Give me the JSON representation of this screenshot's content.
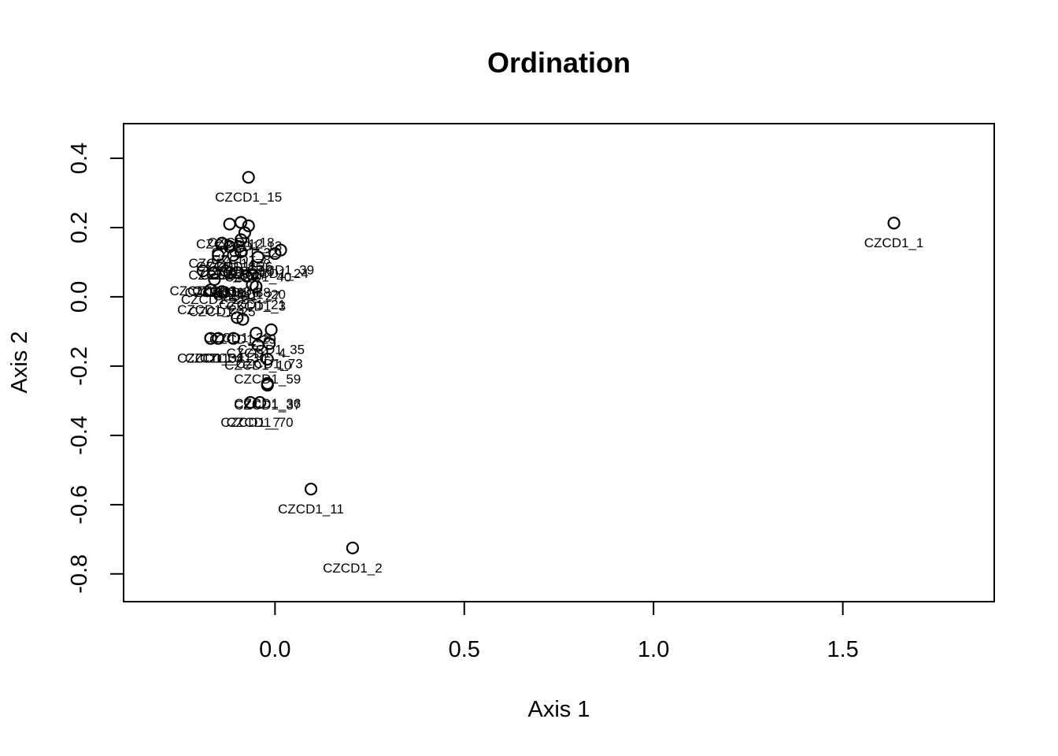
{
  "chart_data": {
    "type": "scatter",
    "title": "Ordination",
    "xlabel": "Axis 1",
    "ylabel": "Axis 2",
    "xlim": [
      -0.4,
      1.9
    ],
    "ylim": [
      -0.88,
      0.5
    ],
    "x_ticks": [
      0.0,
      0.5,
      1.0,
      1.5
    ],
    "y_ticks": [
      -0.8,
      -0.6,
      -0.4,
      -0.2,
      0.0,
      0.2,
      0.4
    ],
    "grid": false,
    "legend": "none",
    "points": [
      {
        "label": "CZCD1_15",
        "x": -0.07,
        "y": 0.345
      },
      {
        "label": "CZCD1_1",
        "x": 1.635,
        "y": 0.213
      },
      {
        "label": "CZCD1_12",
        "x": -0.12,
        "y": 0.21
      },
      {
        "label": "CZCD1_18",
        "x": -0.09,
        "y": 0.215
      },
      {
        "label": "CZCD1_13",
        "x": -0.07,
        "y": 0.205
      },
      {
        "label": "CZCD1_32",
        "x": -0.08,
        "y": 0.185
      },
      {
        "label": "CZCD1_8",
        "x": -0.09,
        "y": 0.165
      },
      {
        "label": "CZCD1_14",
        "x": -0.14,
        "y": 0.155
      },
      {
        "label": "CZCD1_16",
        "x": -0.12,
        "y": 0.145
      },
      {
        "label": "CZCD1_26",
        "x": -0.095,
        "y": 0.145
      },
      {
        "label": "CZCD1_39",
        "x": 0.015,
        "y": 0.135
      },
      {
        "label": "CZCD1_5",
        "x": -0.15,
        "y": 0.12
      },
      {
        "label": "CZCD1_17",
        "x": -0.11,
        "y": 0.12
      },
      {
        "label": "CZCD1_19",
        "x": -0.09,
        "y": 0.13
      },
      {
        "label": "CZCD1_40",
        "x": -0.045,
        "y": 0.115
      },
      {
        "label": "CZCD1_24",
        "x": 0.0,
        "y": 0.125
      },
      {
        "label": "CZCD1_33",
        "x": -0.19,
        "y": 0.075
      },
      {
        "label": "CZCD1_9",
        "x": -0.16,
        "y": 0.07
      },
      {
        "label": "CZCD1_34",
        "x": -0.13,
        "y": 0.075
      },
      {
        "label": "CZCD1_6",
        "x": -0.12,
        "y": 0.07
      },
      {
        "label": "CZCD1_38",
        "x": -0.1,
        "y": 0.07
      },
      {
        "label": "CZCD1_20",
        "x": -0.06,
        "y": 0.065
      },
      {
        "label": "CZCD1_27",
        "x": -0.075,
        "y": 0.06
      },
      {
        "label": "CZCD1_22",
        "x": -0.16,
        "y": 0.05
      },
      {
        "label": "CZCD1_3",
        "x": -0.05,
        "y": 0.03
      },
      {
        "label": "CZCD1_23",
        "x": -0.17,
        "y": 0.02
      },
      {
        "label": "CZCD1_25",
        "x": -0.14,
        "y": 0.015
      },
      {
        "label": "CZCD1_21",
        "x": -0.06,
        "y": 0.035
      },
      {
        "label": "CZCD1_28",
        "x": -0.1,
        "y": -0.06
      },
      {
        "label": "CZCD1_29",
        "x": -0.085,
        "y": -0.065
      },
      {
        "label": "CZCD1_35",
        "x": -0.01,
        "y": -0.095
      },
      {
        "label": "CZCD1_4",
        "x": -0.05,
        "y": -0.105
      },
      {
        "label": "CZCD1_31",
        "x": -0.17,
        "y": -0.12
      },
      {
        "label": "CZCD1_41",
        "x": -0.15,
        "y": -0.12
      },
      {
        "label": "CZCD1_30",
        "x": -0.11,
        "y": -0.12
      },
      {
        "label": "CZCD1_10",
        "x": -0.045,
        "y": -0.14
      },
      {
        "label": "CZCD1_73",
        "x": -0.015,
        "y": -0.135
      },
      {
        "label": "CZCD1_59",
        "x": -0.02,
        "y": -0.18
      },
      {
        "label": "CZCD1_36",
        "x": -0.02,
        "y": -0.25
      },
      {
        "label": "CZCD1_37",
        "x": -0.02,
        "y": -0.255
      },
      {
        "label": "CZCD1_7",
        "x": -0.065,
        "y": -0.305
      },
      {
        "label": "CZCD1_70",
        "x": -0.04,
        "y": -0.305
      },
      {
        "label": "CZCD1_11",
        "x": 0.095,
        "y": -0.555
      },
      {
        "label": "CZCD1_2",
        "x": 0.205,
        "y": -0.725
      }
    ]
  }
}
